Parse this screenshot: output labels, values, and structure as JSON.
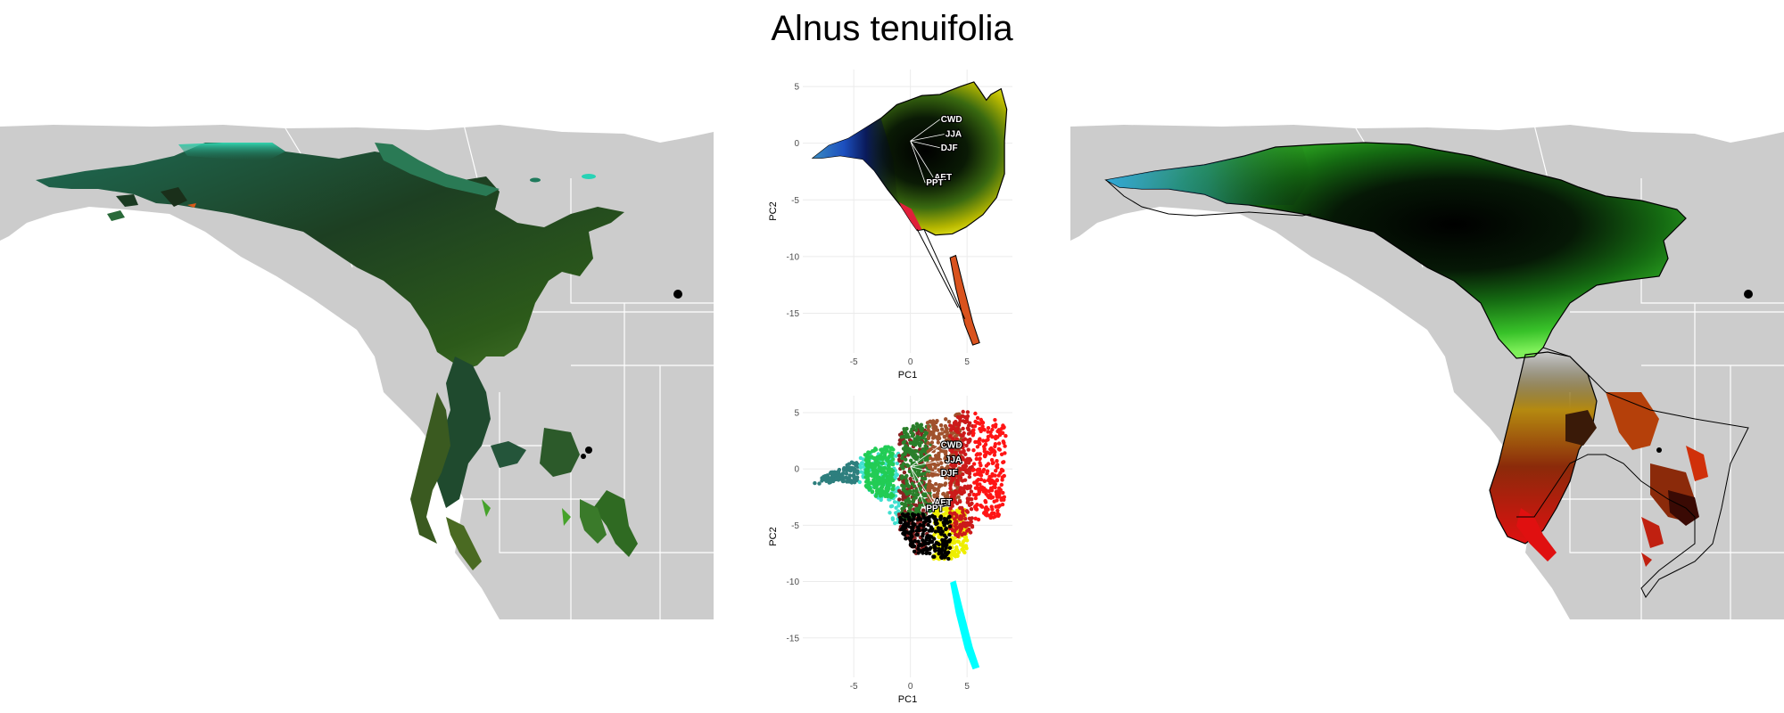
{
  "title": "Alnus tenuifolia",
  "colors": {
    "land": "#cccccc",
    "border": "#ffffff",
    "grid": "#ebebeb",
    "axis_text": "#4d4d4d"
  },
  "chart_data": [
    {
      "type": "map",
      "panel": "left",
      "legend": "none",
      "grid": false
    },
    {
      "type": "scatter",
      "panel": "climate-space-top",
      "xlabel": "PC1",
      "ylabel": "PC2",
      "xlim": [
        -9.5,
        9
      ],
      "ylim": [
        -18.5,
        6.5
      ],
      "xticks": [
        -5,
        0,
        5
      ],
      "yticks": [
        5,
        0,
        -5,
        -10,
        -15
      ],
      "grid": true,
      "variable_labels": [
        "CWD",
        "JJA",
        "DJF",
        "AET",
        "PPT"
      ],
      "loadings": [
        {
          "name": "CWD",
          "x": 2.6,
          "y": 2.1
        },
        {
          "name": "JJA",
          "x": 3.0,
          "y": 0.8
        },
        {
          "name": "DJF",
          "x": 2.6,
          "y": -0.4
        },
        {
          "name": "AET",
          "x": 2.0,
          "y": -3.0
        },
        {
          "name": "PPT",
          "x": 1.3,
          "y": -3.5
        }
      ],
      "groups": [
        {
          "name": "main",
          "outline": [
            [
              -8.6,
              -1.3
            ],
            [
              -7.2,
              -0.2
            ],
            [
              -5.5,
              0.4
            ],
            [
              -4.2,
              1.2
            ],
            [
              -2.6,
              2.2
            ],
            [
              -1.2,
              3.4
            ],
            [
              1.0,
              4.2
            ],
            [
              2.6,
              4.3
            ],
            [
              4.4,
              5.0
            ],
            [
              5.6,
              5.4
            ],
            [
              6.1,
              4.7
            ],
            [
              6.7,
              3.8
            ],
            [
              7.1,
              4.3
            ],
            [
              8.0,
              4.8
            ],
            [
              8.5,
              3.0
            ],
            [
              8.3,
              0.2
            ],
            [
              8.3,
              -2.7
            ],
            [
              7.6,
              -4.8
            ],
            [
              6.4,
              -6.3
            ],
            [
              4.9,
              -7.4
            ],
            [
              3.7,
              -8.0
            ],
            [
              2.2,
              -8.1
            ],
            [
              1.2,
              -7.6
            ],
            [
              0.6,
              -7.7
            ],
            [
              0.1,
              -7.0
            ],
            [
              -0.8,
              -5.6
            ],
            [
              -2.0,
              -4.1
            ],
            [
              -3.2,
              -2.4
            ],
            [
              -4.2,
              -1.4
            ],
            [
              -6.2,
              -1.1
            ],
            [
              -7.8,
              -1.3
            ]
          ]
        },
        {
          "name": "tail",
          "outline": [
            [
              3.5,
              -10.1
            ],
            [
              4.0,
              -9.9
            ],
            [
              4.6,
              -12.3
            ],
            [
              5.5,
              -15.8
            ],
            [
              6.1,
              -17.6
            ],
            [
              5.5,
              -17.8
            ],
            [
              4.8,
              -16.0
            ],
            [
              4.0,
              -12.8
            ]
          ]
        }
      ]
    },
    {
      "type": "scatter",
      "panel": "climate-space-bottom",
      "xlabel": "PC1",
      "ylabel": "PC2",
      "xlim": [
        -9.5,
        9
      ],
      "ylim": [
        -18.5,
        6.5
      ],
      "xticks": [
        -5,
        0,
        5
      ],
      "yticks": [
        5,
        0,
        -5,
        -10,
        -15
      ],
      "grid": true,
      "variable_labels": [
        "CWD",
        "JJA",
        "DJF",
        "AET",
        "PPT"
      ],
      "clusters": [
        {
          "color": "#2e7f7e",
          "x": [
            -8.8,
            -4.5
          ],
          "y": [
            -1.4,
            0.6
          ]
        },
        {
          "color": "#40e0d0",
          "x": [
            -4.5,
            -1.0
          ],
          "y": [
            -6.8,
            1.5
          ]
        },
        {
          "color": "#22cc55",
          "x": [
            -4.0,
            -1.5
          ],
          "y": [
            -2.5,
            2.0
          ]
        },
        {
          "color": "#8b2222",
          "x": [
            -1.0,
            1.5
          ],
          "y": [
            -7.5,
            3.5
          ]
        },
        {
          "color": "#2a7f2a",
          "x": [
            -0.8,
            1.8
          ],
          "y": [
            -4.5,
            4.0
          ]
        },
        {
          "color": "#a0522d",
          "x": [
            1.5,
            4.5
          ],
          "y": [
            -3.0,
            5.0
          ]
        },
        {
          "color": "#eeee00",
          "x": [
            2.0,
            5.0
          ],
          "y": [
            -8.0,
            -3.5
          ]
        },
        {
          "color": "#cc1a1a",
          "x": [
            3.5,
            5.5
          ],
          "y": [
            -6.0,
            5.2
          ]
        },
        {
          "color": "#ff1515",
          "x": [
            5.5,
            8.4
          ],
          "y": [
            -4.5,
            5.0
          ]
        },
        {
          "color": "#000000",
          "x": [
            -1.0,
            3.5
          ],
          "y": [
            -8.0,
            -4.0
          ]
        }
      ],
      "tail": {
        "color": "#00ffff"
      }
    },
    {
      "type": "map",
      "panel": "right",
      "legend": "none",
      "grid": false
    }
  ]
}
